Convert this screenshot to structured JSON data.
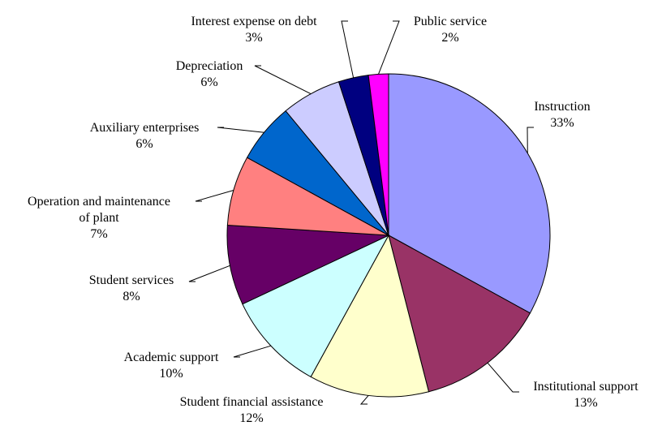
{
  "chart_data": {
    "type": "pie",
    "start_angle_deg": 0,
    "direction": "clockwise",
    "slices": [
      {
        "label": "Instruction",
        "value": 33,
        "value_label": "33%",
        "color": "#9999ff"
      },
      {
        "label": "Institutional support",
        "value": 13,
        "value_label": "13%",
        "color": "#993366"
      },
      {
        "label": "Student financial assistance",
        "value": 12,
        "value_label": "12%",
        "color": "#ffffcc"
      },
      {
        "label": "Academic support",
        "value": 10,
        "value_label": "10%",
        "color": "#ccffff"
      },
      {
        "label": "Student services",
        "value": 8,
        "value_label": "8%",
        "color": "#660066"
      },
      {
        "label": "Operation and maintenance of plant",
        "value": 7,
        "value_label": "7%",
        "color": "#ff8080"
      },
      {
        "label": "Auxiliary enterprises",
        "value": 6,
        "value_label": "6%",
        "color": "#0066cc"
      },
      {
        "label": "Depreciation",
        "value": 6,
        "value_label": "6%",
        "color": "#ccccff"
      },
      {
        "label": "Interest expense on debt",
        "value": 3,
        "value_label": "3%",
        "color": "#000080"
      },
      {
        "label": "Public service",
        "value": 2,
        "value_label": "2%",
        "color": "#ff00ff"
      }
    ]
  }
}
